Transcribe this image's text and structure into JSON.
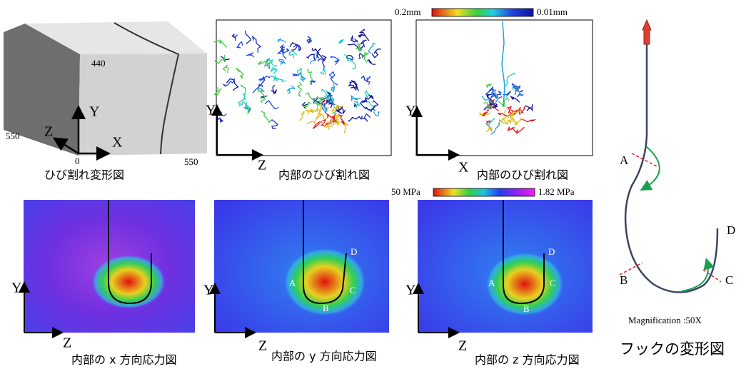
{
  "cube": {
    "caption": "ひび割れ変形図",
    "dims": [
      440,
      550,
      0,
      550
    ],
    "axes": [
      "Y",
      "Z",
      "X"
    ]
  },
  "crack_zy": {
    "caption": "内部のひび割れ図",
    "axes": [
      "Y",
      "Z"
    ]
  },
  "crack_xy": {
    "caption": "内部のひび割れ図",
    "axes": [
      "Y",
      "X"
    ]
  },
  "crack_scale": {
    "max": "0.2mm",
    "min": "0.01mm"
  },
  "stress_scale": {
    "max": "50 MPa",
    "min": "1.82 MPa"
  },
  "stress_x": {
    "caption": "内部の x 方向応力図",
    "axes": [
      "Y",
      "Z"
    ]
  },
  "stress_y": {
    "caption": "内部の y 方向応力図",
    "axes": [
      "Y",
      "Z"
    ],
    "points": [
      "A",
      "B",
      "C",
      "D"
    ]
  },
  "stress_z": {
    "caption": "内部の z 方向応力図",
    "axes": [
      "Y",
      "Z"
    ],
    "points": [
      "A",
      "B",
      "C",
      "D"
    ]
  },
  "hook": {
    "caption": "フックの変形図",
    "magnification": "Magnification :50X",
    "points": [
      "A",
      "B",
      "C",
      "D"
    ]
  }
}
